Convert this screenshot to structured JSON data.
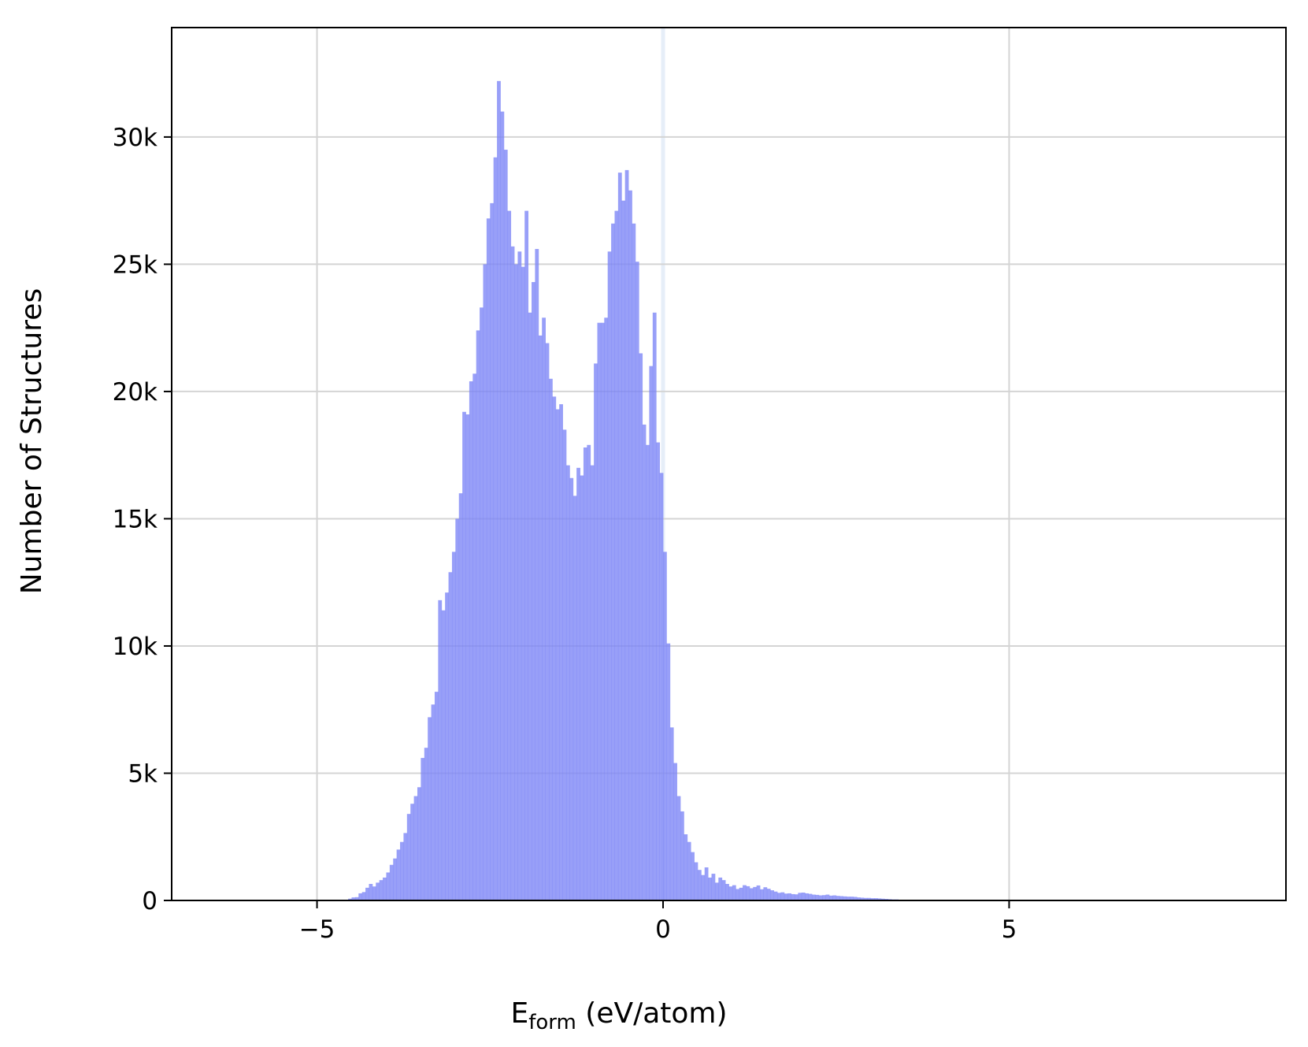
{
  "chart_data": {
    "type": "bar",
    "subtype": "histogram",
    "title": "",
    "xlabel_main": "E",
    "xlabel_sub": "form",
    "xlabel_rest": " (eV/atom)",
    "ylabel": "Number of Structures",
    "xlim": [
      -7.1,
      9.0
    ],
    "ylim": [
      0,
      34300
    ],
    "grid": true,
    "bar_color": "#7b84f6",
    "bar_opacity": 0.78,
    "zero_line_color": "#e6eef8",
    "x_ticks": [
      -5,
      0,
      5
    ],
    "x_tick_labels": [
      "−5",
      "0",
      "5"
    ],
    "y_ticks": [
      0,
      5000,
      10000,
      15000,
      20000,
      25000,
      30000
    ],
    "y_tick_labels": [
      "0",
      "5k",
      "10k",
      "15k",
      "20k",
      "25k",
      "30k"
    ],
    "bin_start": -4.55,
    "bin_width": 0.05,
    "values": [
      70,
      120,
      130,
      280,
      330,
      500,
      650,
      550,
      700,
      800,
      900,
      1100,
      1400,
      1650,
      2000,
      2300,
      2650,
      3400,
      3800,
      4100,
      4450,
      5600,
      6000,
      7200,
      7700,
      8200,
      11800,
      11400,
      12100,
      12900,
      13700,
      15000,
      16000,
      19200,
      19100,
      20400,
      20700,
      22400,
      23300,
      25000,
      26800,
      27400,
      29200,
      32200,
      31000,
      29500,
      27100,
      25700,
      25000,
      25500,
      24900,
      27100,
      23100,
      24300,
      25600,
      22200,
      22900,
      21900,
      20500,
      19800,
      19300,
      19500,
      18500,
      17100,
      16600,
      15900,
      17000,
      16700,
      17800,
      17900,
      17100,
      21100,
      22700,
      22700,
      22900,
      25500,
      26600,
      27100,
      28600,
      27500,
      28700,
      27900,
      26600,
      25100,
      21500,
      18700,
      17900,
      21000,
      23100,
      18000,
      16800,
      13700,
      10100,
      6800,
      5400,
      4100,
      3500,
      2600,
      2300,
      1900,
      1500,
      1200,
      1000,
      1300,
      900,
      1050,
      700,
      900,
      800,
      650,
      550,
      600,
      450,
      500,
      600,
      560,
      480,
      530,
      590,
      440,
      520,
      460,
      400,
      350,
      300,
      320,
      270,
      280,
      250,
      240,
      300,
      310,
      280,
      260,
      230,
      220,
      200,
      210,
      230,
      190,
      200,
      180,
      170,
      160,
      150,
      150,
      140,
      120,
      110,
      100,
      100,
      90,
      90,
      80,
      70,
      60,
      50,
      40,
      40,
      30,
      30,
      20,
      20,
      15,
      10,
      10,
      10,
      5,
      5
    ]
  }
}
